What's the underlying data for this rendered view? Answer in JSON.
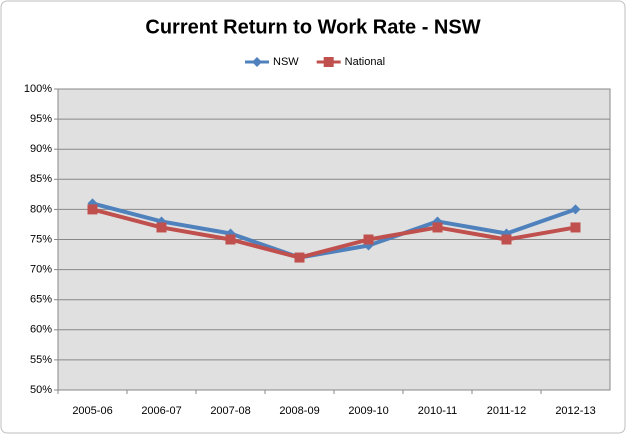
{
  "chart_data": {
    "type": "line",
    "title": "Current Return to Work Rate - NSW",
    "categories": [
      "2005-06",
      "2006-07",
      "2007-08",
      "2008-09",
      "2009-10",
      "2010-11",
      "2011-12",
      "2012-13"
    ],
    "series": [
      {
        "name": "NSW",
        "color": "#4f81bd",
        "marker": "diamond",
        "values": [
          81,
          78,
          76,
          72,
          74,
          78,
          76,
          80
        ]
      },
      {
        "name": "National",
        "color": "#c0504d",
        "marker": "square",
        "values": [
          80,
          77,
          75,
          72,
          75,
          77,
          75,
          77
        ]
      }
    ],
    "ylim": [
      50,
      100
    ],
    "yticks": [
      {
        "value": 50,
        "label": "50%"
      },
      {
        "value": 55,
        "label": "55%"
      },
      {
        "value": 60,
        "label": "60%"
      },
      {
        "value": 65,
        "label": "65%"
      },
      {
        "value": 70,
        "label": "70%"
      },
      {
        "value": 75,
        "label": "75%"
      },
      {
        "value": 80,
        "label": "80%"
      },
      {
        "value": 85,
        "label": "85%"
      },
      {
        "value": 90,
        "label": "90%"
      },
      {
        "value": 95,
        "label": "95%"
      },
      {
        "value": 100,
        "label": "100%"
      }
    ],
    "grid": true,
    "legend": "top"
  }
}
